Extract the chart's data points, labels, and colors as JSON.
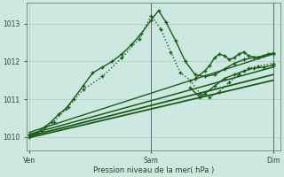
{
  "background_color": "#cce8e0",
  "plot_bg_color": "#cce8e0",
  "grid_color": "#aaccC4",
  "line_color": "#1a5c1a",
  "xlabel": "Pression niveau de la mer( hPa )",
  "yticks": [
    1010,
    1011,
    1012,
    1013
  ],
  "xtick_labels": [
    "Ven",
    "Sam",
    "Dim"
  ],
  "xtick_positions": [
    0,
    0.5,
    1.0
  ],
  "xlim": [
    -0.01,
    1.03
  ],
  "ylim": [
    1009.65,
    1013.55
  ],
  "series": [
    {
      "x": [
        0.0,
        0.03,
        0.06,
        0.09,
        0.12,
        0.15,
        0.18,
        0.22,
        0.26,
        0.3,
        0.34,
        0.38,
        0.42,
        0.46,
        0.5,
        0.53,
        0.56,
        0.6,
        0.64,
        0.68,
        0.72,
        0.76,
        0.8,
        0.84,
        0.88,
        0.92,
        0.96,
        1.0
      ],
      "y": [
        1010.05,
        1010.1,
        1010.25,
        1010.4,
        1010.6,
        1010.75,
        1011.0,
        1011.35,
        1011.7,
        1011.85,
        1012.0,
        1012.2,
        1012.45,
        1012.75,
        1013.1,
        1013.35,
        1013.05,
        1012.55,
        1012.0,
        1011.65,
        1011.6,
        1011.65,
        1011.8,
        1011.95,
        1012.05,
        1012.1,
        1012.15,
        1012.2
      ],
      "style": "-",
      "marker": "+",
      "lw": 1.0,
      "ms": 3.5,
      "mew": 1.0
    },
    {
      "x": [
        0.0,
        0.05,
        0.1,
        0.16,
        0.22,
        0.3,
        0.38,
        0.45,
        0.5,
        0.54,
        0.58,
        0.62,
        0.66,
        0.7,
        0.74,
        0.78,
        0.82,
        0.86,
        0.9,
        0.94,
        1.0
      ],
      "y": [
        1010.0,
        1010.15,
        1010.4,
        1010.8,
        1011.25,
        1011.6,
        1012.1,
        1012.6,
        1013.22,
        1012.85,
        1012.25,
        1011.7,
        1011.5,
        1011.15,
        1011.05,
        1011.2,
        1011.45,
        1011.65,
        1011.82,
        1011.88,
        1011.95
      ],
      "style": ":",
      "marker": "+",
      "lw": 1.0,
      "ms": 3.5,
      "mew": 1.0
    },
    {
      "x": [
        0.0,
        1.0
      ],
      "y": [
        1009.98,
        1011.5
      ],
      "style": "-",
      "marker": null,
      "lw": 1.3,
      "ms": 0,
      "mew": 0
    },
    {
      "x": [
        0.0,
        1.0
      ],
      "y": [
        1010.02,
        1011.65
      ],
      "style": "-",
      "marker": null,
      "lw": 1.3,
      "ms": 0,
      "mew": 0
    },
    {
      "x": [
        0.0,
        1.0
      ],
      "y": [
        1010.07,
        1011.85
      ],
      "style": "-",
      "marker": null,
      "lw": 1.1,
      "ms": 0,
      "mew": 0
    },
    {
      "x": [
        0.0,
        1.0
      ],
      "y": [
        1010.12,
        1012.2
      ],
      "style": "-",
      "marker": null,
      "lw": 1.0,
      "ms": 0,
      "mew": 0
    },
    {
      "x": [
        0.68,
        0.72,
        0.74,
        0.76,
        0.78,
        0.8,
        0.82,
        0.84,
        0.86,
        0.88,
        0.9,
        0.94,
        0.98,
        1.0
      ],
      "y": [
        1011.55,
        1011.75,
        1011.9,
        1012.1,
        1012.2,
        1012.15,
        1012.05,
        1012.1,
        1012.2,
        1012.25,
        1012.15,
        1012.1,
        1012.2,
        1012.22
      ],
      "style": "-",
      "marker": "+",
      "lw": 1.0,
      "ms": 3.5,
      "mew": 1.0
    },
    {
      "x": [
        0.66,
        0.7,
        0.72,
        0.76,
        0.8,
        0.84,
        0.88,
        0.92,
        0.96,
        1.0
      ],
      "y": [
        1011.3,
        1011.05,
        1011.15,
        1011.35,
        1011.55,
        1011.65,
        1011.75,
        1011.82,
        1011.85,
        1011.9
      ],
      "style": "-",
      "marker": "+",
      "lw": 1.0,
      "ms": 3.5,
      "mew": 1.0
    }
  ]
}
